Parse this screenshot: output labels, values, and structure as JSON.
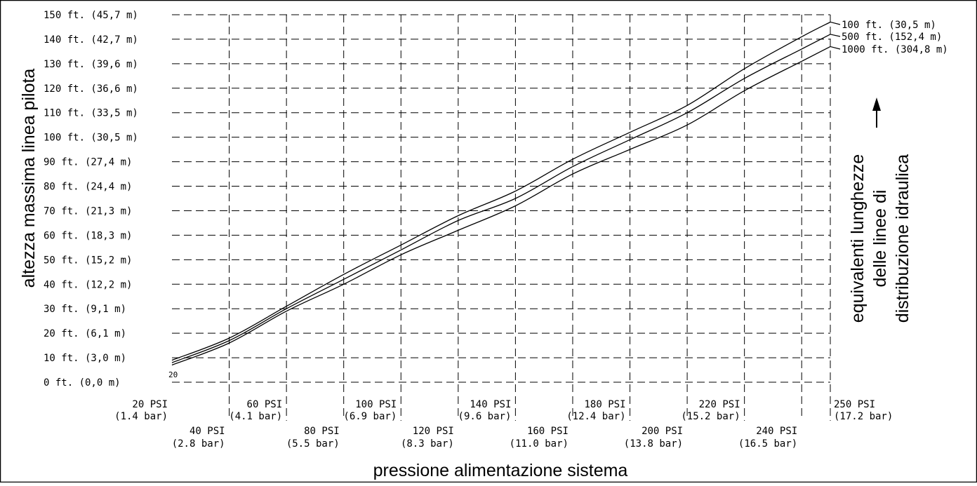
{
  "chart_data": {
    "type": "line",
    "xlabel": "pressione alimentazione sistema",
    "ylabel": "altezza massima linea pilota",
    "legend_title": "equivalenti lunghezze delle linee di distribuzione idraulica",
    "legend_title_lines": [
      "equivalenti lunghezze",
      "delle linee di",
      "distribuzione idraulica"
    ],
    "xlim": [
      20,
      250
    ],
    "ylim": [
      0,
      150
    ],
    "grid": true,
    "legend_placement": "right",
    "origin_marker": "20",
    "x_ticks_upper": [
      {
        "value": 20,
        "psi": "20 PSI",
        "bar": "(1.4 bar)"
      },
      {
        "value": 60,
        "psi": "60 PSI",
        "bar": "(4.1 bar)"
      },
      {
        "value": 100,
        "psi": "100 PSI",
        "bar": "(6.9 bar)"
      },
      {
        "value": 140,
        "psi": "140 PSI",
        "bar": "(9.6 bar)"
      },
      {
        "value": 180,
        "psi": "180 PSI",
        "bar": "(12.4 bar)"
      },
      {
        "value": 220,
        "psi": "220 PSI",
        "bar": "(15.2 bar)"
      },
      {
        "value": 250,
        "psi": "250 PSI",
        "bar": "(17.2 bar)"
      }
    ],
    "x_ticks_lower": [
      {
        "value": 40,
        "psi": "40 PSI",
        "bar": "(2.8 bar)"
      },
      {
        "value": 80,
        "psi": "80 PSI",
        "bar": "(5.5 bar)"
      },
      {
        "value": 120,
        "psi": "120 PSI",
        "bar": "(8.3 bar)"
      },
      {
        "value": 160,
        "psi": "160 PSI",
        "bar": "(11.0 bar)"
      },
      {
        "value": 200,
        "psi": "200 PSI",
        "bar": "(13.8 bar)"
      },
      {
        "value": 240,
        "psi": "240 PSI",
        "bar": "(16.5 bar)"
      }
    ],
    "y_ticks": [
      {
        "value": 0,
        "label": "0 ft. (0,0 m)"
      },
      {
        "value": 10,
        "label": "10 ft. (3,0 m)"
      },
      {
        "value": 20,
        "label": "20 ft. (6,1 m)"
      },
      {
        "value": 30,
        "label": "30 ft. (9,1 m)"
      },
      {
        "value": 40,
        "label": "40 ft. (12,2 m)"
      },
      {
        "value": 50,
        "label": "50 ft. (15,2 m)"
      },
      {
        "value": 60,
        "label": "60 ft. (18,3 m)"
      },
      {
        "value": 70,
        "label": "70 ft. (21,3 m)"
      },
      {
        "value": 80,
        "label": "80 ft. (24,4 m)"
      },
      {
        "value": 90,
        "label": "90 ft. (27,4 m)"
      },
      {
        "value": 100,
        "label": "100 ft. (30,5 m)"
      },
      {
        "value": 110,
        "label": "110 ft. (33,5 m)"
      },
      {
        "value": 120,
        "label": "120 ft. (36,6 m)"
      },
      {
        "value": 130,
        "label": "130 ft. (39,6 m)"
      },
      {
        "value": 140,
        "label": "140 ft. (42,7 m)"
      },
      {
        "value": 150,
        "label": "150 ft. (45,7 m)"
      }
    ],
    "series": [
      {
        "name": "100 ft. (30,5 m)",
        "x": [
          20,
          40,
          60,
          80,
          100,
          120,
          140,
          160,
          180,
          200,
          220,
          240,
          250
        ],
        "y": [
          9,
          18,
          31,
          44,
          56,
          68,
          78,
          91,
          102,
          113,
          128,
          141,
          147
        ]
      },
      {
        "name": "500 ft. (152,4 m)",
        "x": [
          20,
          40,
          60,
          80,
          100,
          120,
          140,
          160,
          180,
          200,
          220,
          240,
          250
        ],
        "y": [
          8,
          17,
          30,
          42,
          54,
          66,
          75,
          88,
          99,
          110,
          124,
          136,
          142
        ]
      },
      {
        "name": "1000 ft. (304,8 m)",
        "x": [
          20,
          40,
          60,
          80,
          100,
          120,
          140,
          160,
          180,
          200,
          220,
          240,
          250
        ],
        "y": [
          7,
          16,
          29,
          40,
          52,
          62,
          72,
          85,
          95,
          105,
          119,
          131,
          137
        ]
      }
    ]
  }
}
